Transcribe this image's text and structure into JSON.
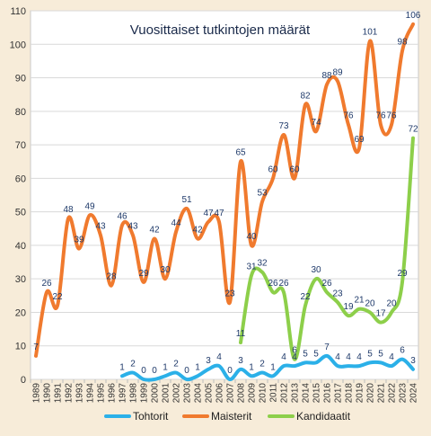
{
  "chart_data": {
    "type": "line",
    "title": "Vuosittaiset tutkintojen määrät",
    "xlabel": "",
    "ylabel": "",
    "ylim": [
      0,
      110
    ],
    "yticks": [
      0,
      10,
      20,
      30,
      40,
      50,
      60,
      70,
      80,
      90,
      100,
      110
    ],
    "grid": true,
    "legend_position": "bottom",
    "categories": [
      "1989",
      "1990",
      "1991",
      "1992",
      "1993",
      "1994",
      "1995",
      "1996",
      "1997",
      "1998",
      "1999",
      "2000",
      "2001",
      "2002",
      "2003",
      "2004",
      "2005",
      "2006",
      "2007",
      "2008",
      "2009",
      "2010",
      "2011",
      "2012",
      "2013",
      "2014",
      "2015",
      "2016",
      "2017",
      "2018",
      "2019",
      "2020",
      "2021",
      "2022",
      "2023",
      "2024"
    ],
    "series": [
      {
        "name": "Tohtorit",
        "color": "#2bb0e8",
        "values": [
          null,
          null,
          null,
          null,
          null,
          null,
          null,
          null,
          1,
          2,
          0,
          0,
          1,
          2,
          0,
          1,
          3,
          4,
          0,
          3,
          1,
          2,
          1,
          4,
          4,
          5,
          5,
          7,
          4,
          4,
          4,
          5,
          5,
          4,
          6,
          3
        ]
      },
      {
        "name": "Maisterit",
        "color": "#f07a2e",
        "values": [
          7,
          26,
          22,
          48,
          39,
          49,
          43,
          28,
          46,
          43,
          29,
          42,
          30,
          44,
          51,
          42,
          47,
          47,
          23,
          65,
          40,
          53,
          60,
          73,
          60,
          82,
          74,
          88,
          89,
          76,
          69,
          101,
          76,
          76,
          98,
          106
        ]
      },
      {
        "name": "Kandidaatit",
        "color": "#8dcf4a",
        "values": [
          null,
          null,
          null,
          null,
          null,
          null,
          null,
          null,
          null,
          null,
          null,
          null,
          null,
          null,
          null,
          null,
          null,
          null,
          null,
          11,
          31,
          32,
          26,
          26,
          6,
          22,
          30,
          26,
          23,
          19,
          21,
          20,
          17,
          20,
          29,
          72
        ]
      }
    ]
  }
}
